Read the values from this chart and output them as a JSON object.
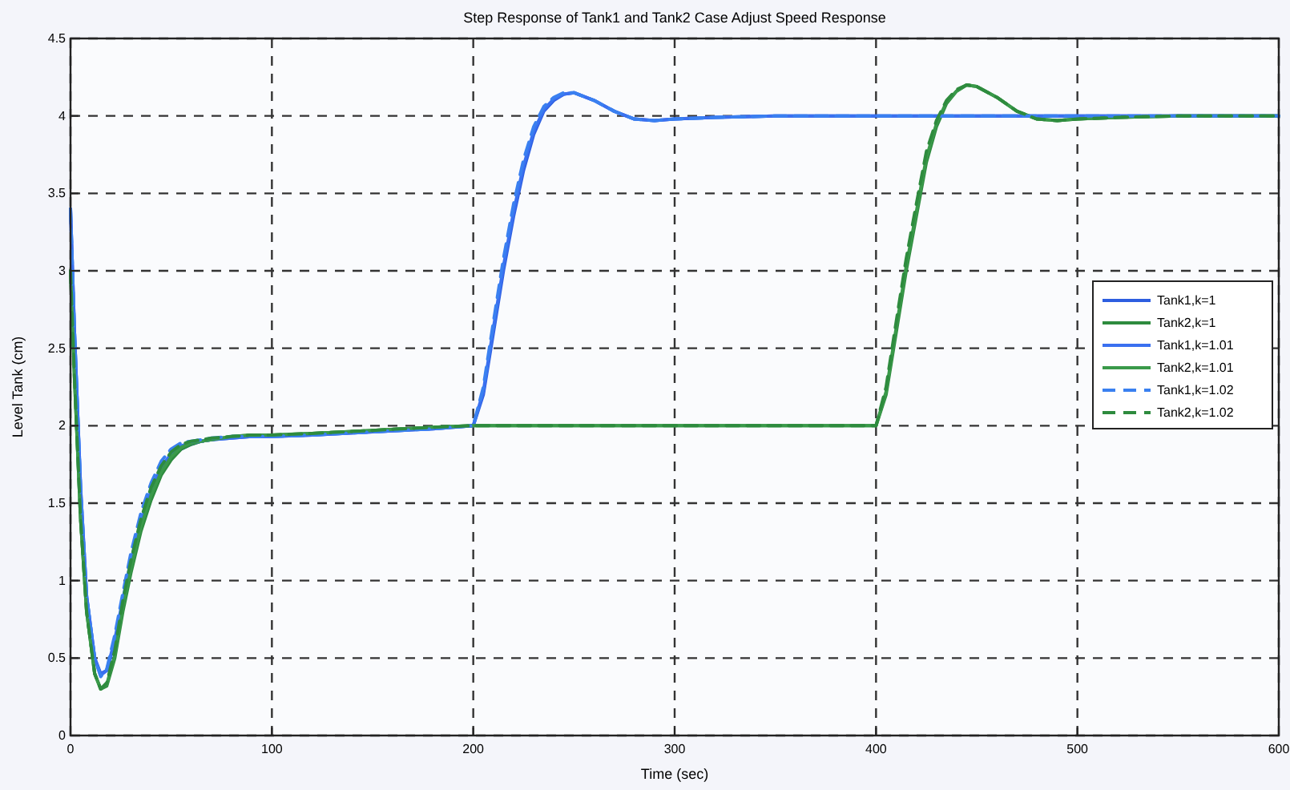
{
  "chart_data": {
    "type": "line",
    "title": "Step Response of Tank1 and Tank2 Case Adjust Speed Response",
    "xlabel": "Time (sec)",
    "ylabel": "Level Tank (cm)",
    "x": [
      0,
      2,
      5,
      8,
      12,
      15,
      18,
      22,
      26,
      30,
      35,
      40,
      45,
      50,
      55,
      60,
      65,
      70,
      80,
      90,
      100,
      120,
      150,
      180,
      200,
      205,
      210,
      215,
      220,
      225,
      230,
      235,
      240,
      245,
      250,
      260,
      270,
      280,
      290,
      300,
      320,
      350,
      400,
      405,
      410,
      415,
      420,
      425,
      430,
      435,
      440,
      445,
      450,
      460,
      470,
      480,
      490,
      500,
      520,
      550,
      600
    ],
    "xlim": [
      0,
      600
    ],
    "xticks": [
      0,
      100,
      200,
      300,
      400,
      500,
      600
    ],
    "ylim": [
      0,
      4.5
    ],
    "yticks": [
      0,
      0.5,
      1,
      1.5,
      2,
      2.5,
      3,
      3.5,
      4,
      4.5
    ],
    "grid": true,
    "legend": "right",
    "series": [
      {
        "name": "Tank1,k=1",
        "color": "#2d5ee0",
        "line_style": "solid",
        "values": [
          3.4,
          2.6,
          1.6,
          0.9,
          0.5,
          0.4,
          0.42,
          0.6,
          0.85,
          1.1,
          1.35,
          1.55,
          1.7,
          1.8,
          1.85,
          1.88,
          1.9,
          1.91,
          1.92,
          1.93,
          1.93,
          1.94,
          1.96,
          1.98,
          2.0,
          2.2,
          2.6,
          3.0,
          3.35,
          3.65,
          3.88,
          4.03,
          4.1,
          4.14,
          4.15,
          4.1,
          4.03,
          3.98,
          3.97,
          3.98,
          3.99,
          4.0,
          4.0,
          4.0,
          4.0,
          4.0,
          4.0,
          4.0,
          4.0,
          4.0,
          4.0,
          4.0,
          4.0,
          4.0,
          4.0,
          4.0,
          4.0,
          4.0,
          4.0,
          4.0,
          4.0
        ]
      },
      {
        "name": "Tank2,k=1",
        "color": "#2e8b3e",
        "line_style": "solid",
        "values": [
          3.0,
          2.3,
          1.4,
          0.8,
          0.4,
          0.3,
          0.32,
          0.5,
          0.8,
          1.05,
          1.32,
          1.52,
          1.68,
          1.78,
          1.85,
          1.88,
          1.9,
          1.91,
          1.93,
          1.94,
          1.94,
          1.95,
          1.97,
          1.99,
          2.0,
          2.0,
          2.0,
          2.0,
          2.0,
          2.0,
          2.0,
          2.0,
          2.0,
          2.0,
          2.0,
          2.0,
          2.0,
          2.0,
          2.0,
          2.0,
          2.0,
          2.0,
          2.0,
          2.2,
          2.6,
          3.0,
          3.35,
          3.7,
          3.93,
          4.08,
          4.16,
          4.2,
          4.19,
          4.12,
          4.03,
          3.98,
          3.97,
          3.98,
          3.99,
          4.0,
          4.0
        ]
      },
      {
        "name": "Tank1,k=1.01",
        "color": "#3a70f0",
        "line_style": "solid",
        "values": [
          3.4,
          2.6,
          1.6,
          0.9,
          0.5,
          0.39,
          0.42,
          0.62,
          0.88,
          1.13,
          1.38,
          1.58,
          1.73,
          1.82,
          1.87,
          1.89,
          1.9,
          1.91,
          1.92,
          1.93,
          1.93,
          1.94,
          1.96,
          1.98,
          2.0,
          2.22,
          2.63,
          3.03,
          3.38,
          3.68,
          3.9,
          4.04,
          4.11,
          4.14,
          4.15,
          4.1,
          4.03,
          3.98,
          3.97,
          3.98,
          3.99,
          4.0,
          4.0,
          4.0,
          4.0,
          4.0,
          4.0,
          4.0,
          4.0,
          4.0,
          4.0,
          4.0,
          4.0,
          4.0,
          4.0,
          4.0,
          4.0,
          4.0,
          4.0,
          4.0,
          4.0
        ]
      },
      {
        "name": "Tank2,k=1.01",
        "color": "#3a9a4a",
        "line_style": "solid",
        "values": [
          3.0,
          2.3,
          1.4,
          0.8,
          0.4,
          0.3,
          0.33,
          0.52,
          0.83,
          1.08,
          1.35,
          1.55,
          1.7,
          1.8,
          1.86,
          1.89,
          1.9,
          1.91,
          1.93,
          1.94,
          1.94,
          1.95,
          1.97,
          1.99,
          2.0,
          2.0,
          2.0,
          2.0,
          2.0,
          2.0,
          2.0,
          2.0,
          2.0,
          2.0,
          2.0,
          2.0,
          2.0,
          2.0,
          2.0,
          2.0,
          2.0,
          2.0,
          2.0,
          2.22,
          2.63,
          3.03,
          3.38,
          3.73,
          3.95,
          4.09,
          4.16,
          4.2,
          4.19,
          4.12,
          4.03,
          3.98,
          3.97,
          3.98,
          3.99,
          4.0,
          4.0
        ]
      },
      {
        "name": "Tank1,k=1.02",
        "color": "#3a80f0",
        "line_style": "dashed",
        "values": [
          3.4,
          2.6,
          1.6,
          0.9,
          0.5,
          0.38,
          0.43,
          0.65,
          0.92,
          1.18,
          1.44,
          1.63,
          1.77,
          1.85,
          1.89,
          1.9,
          1.91,
          1.92,
          1.93,
          1.93,
          1.93,
          1.94,
          1.96,
          1.98,
          2.0,
          2.25,
          2.67,
          3.08,
          3.43,
          3.72,
          3.93,
          4.06,
          4.12,
          4.15,
          4.15,
          4.1,
          4.03,
          3.98,
          3.97,
          3.98,
          3.99,
          4.0,
          4.0,
          4.0,
          4.0,
          4.0,
          4.0,
          4.0,
          4.0,
          4.0,
          4.0,
          4.0,
          4.0,
          4.0,
          4.0,
          4.0,
          4.0,
          4.0,
          4.0,
          4.0,
          4.0
        ]
      },
      {
        "name": "Tank2,k=1.02",
        "color": "#2e8b3e",
        "line_style": "dashed",
        "values": [
          3.0,
          2.3,
          1.4,
          0.8,
          0.4,
          0.3,
          0.34,
          0.55,
          0.87,
          1.13,
          1.4,
          1.6,
          1.74,
          1.83,
          1.88,
          1.9,
          1.91,
          1.92,
          1.93,
          1.94,
          1.94,
          1.95,
          1.97,
          1.99,
          2.0,
          2.0,
          2.0,
          2.0,
          2.0,
          2.0,
          2.0,
          2.0,
          2.0,
          2.0,
          2.0,
          2.0,
          2.0,
          2.0,
          2.0,
          2.0,
          2.0,
          2.0,
          2.0,
          2.25,
          2.67,
          3.08,
          3.43,
          3.77,
          3.97,
          4.1,
          4.17,
          4.2,
          4.19,
          4.12,
          4.03,
          3.98,
          3.97,
          3.98,
          3.99,
          4.0,
          4.0
        ]
      }
    ]
  }
}
